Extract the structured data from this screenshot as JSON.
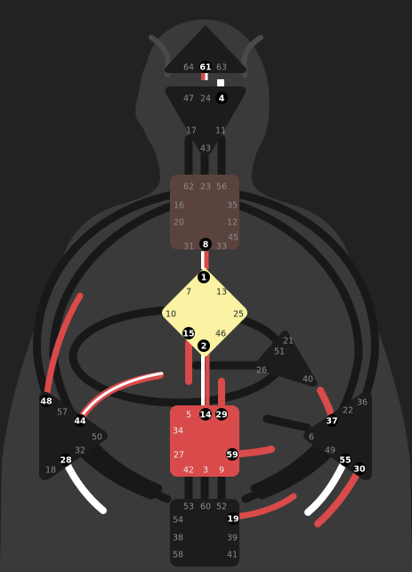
{
  "colors": {
    "background": "#222222",
    "silhouette": "#3a3a3a",
    "center_undefined": "#1c1c1c",
    "channel_undefined": "#181818",
    "design_red": "#d94a4a",
    "personality_white": "#ffffff",
    "g_center": "#fbf3a3",
    "throat_center": "#5a423d",
    "sacral_center": "#d94a4a"
  },
  "centers": {
    "head": {
      "gates": [
        "64",
        "61",
        "63"
      ]
    },
    "ajna": {
      "gates": [
        "47",
        "24",
        "4",
        "17",
        "11",
        "43"
      ]
    },
    "throat": {
      "gates": [
        "62",
        "23",
        "56",
        "16",
        "35",
        "20",
        "12",
        "45",
        "31",
        "8",
        "33"
      ]
    },
    "g": {
      "gates": [
        "1",
        "7",
        "13",
        "10",
        "25",
        "15",
        "2",
        "46"
      ]
    },
    "heart": {
      "gates": [
        "21",
        "51",
        "26",
        "40"
      ]
    },
    "sacral": {
      "gates": [
        "5",
        "14",
        "29",
        "34",
        "27",
        "59",
        "42",
        "3",
        "9"
      ]
    },
    "spleen": {
      "gates": [
        "48",
        "57",
        "44",
        "50",
        "32",
        "28",
        "18"
      ]
    },
    "solar_plexus": {
      "gates": [
        "36",
        "22",
        "37",
        "6",
        "49",
        "55",
        "30"
      ]
    },
    "root": {
      "gates": [
        "53",
        "60",
        "52",
        "54",
        "19",
        "38",
        "39",
        "58",
        "41"
      ]
    }
  }
}
